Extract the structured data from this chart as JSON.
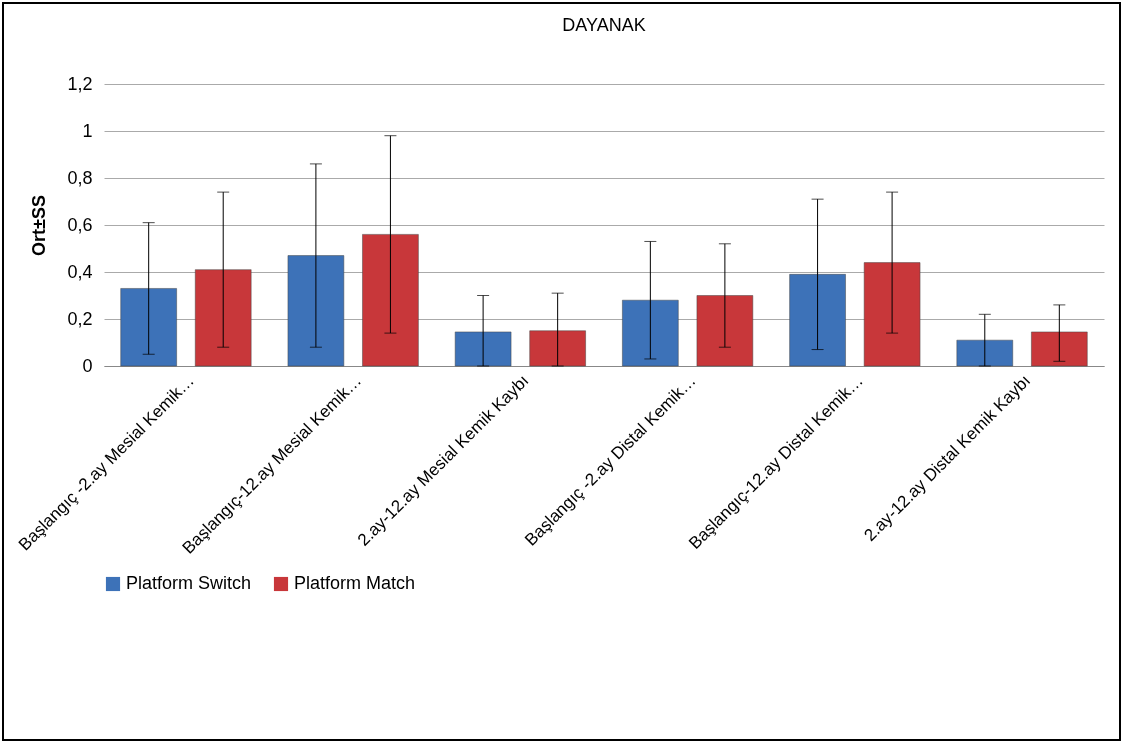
{
  "chart_data": {
    "type": "bar",
    "title": "DAYANAK",
    "ylabel": "Ort±SS",
    "categories": [
      "Başlangıç -2.ay Mesial Kemik…",
      "Başlangıç-12.ay Mesial Kemik…",
      "2.ay-12.ay Mesial Kemik Kaybı",
      "Başlangıç -2.ay Distal Kemik…",
      "Başlangıç-12.ay Distal Kemik…",
      "2.ay-12.ay Distal Kemik Kaybı"
    ],
    "series": [
      {
        "name": "Platform Switch",
        "color": "#3d72b8",
        "values": [
          0.33,
          0.47,
          0.145,
          0.28,
          0.39,
          0.11
        ],
        "errors": [
          [
            0.05,
            0.61
          ],
          [
            0.08,
            0.86
          ],
          [
            0,
            0.3
          ],
          [
            0.03,
            0.53
          ],
          [
            0.07,
            0.71
          ],
          [
            0,
            0.22
          ]
        ]
      },
      {
        "name": "Platform Match",
        "color": "#c8373a",
        "values": [
          0.41,
          0.56,
          0.15,
          0.3,
          0.44,
          0.145
        ],
        "errors": [
          [
            0.08,
            0.74
          ],
          [
            0.14,
            0.98
          ],
          [
            0,
            0.31
          ],
          [
            0.08,
            0.52
          ],
          [
            0.14,
            0.74
          ],
          [
            0.02,
            0.26
          ]
        ]
      }
    ],
    "ylim": [
      0,
      1.2
    ],
    "yticks": [
      0,
      {
        "value": 0.2,
        "label": "0,2"
      },
      {
        "value": 0.4,
        "label": "0,4"
      },
      {
        "value": 0.6,
        "label": "0,6"
      },
      {
        "value": 0.8,
        "label": "0,8"
      },
      1,
      {
        "value": 1.2,
        "label": "1,2"
      }
    ],
    "grid": "y",
    "legend": "bottom"
  }
}
